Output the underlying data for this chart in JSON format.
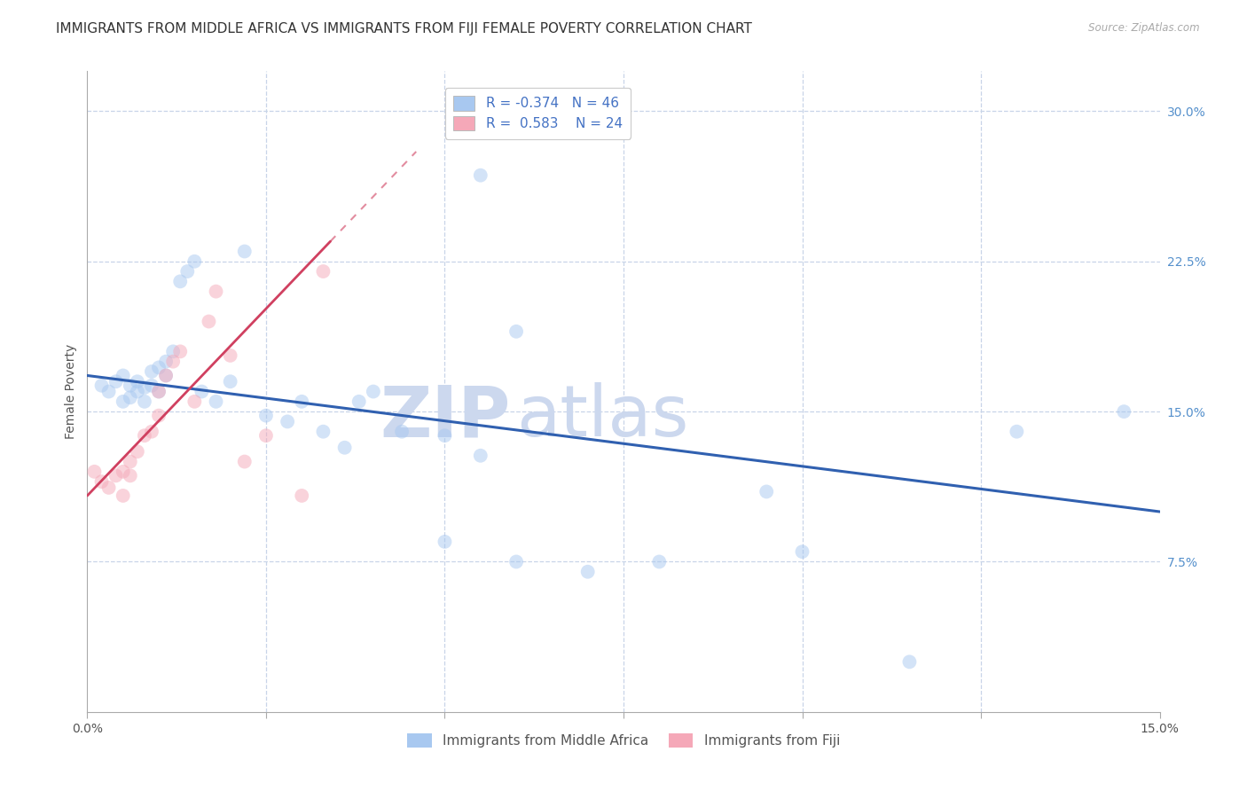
{
  "title": "IMMIGRANTS FROM MIDDLE AFRICA VS IMMIGRANTS FROM FIJI FEMALE POVERTY CORRELATION CHART",
  "source": "Source: ZipAtlas.com",
  "ylabel": "Female Poverty",
  "x_min": 0.0,
  "x_max": 0.15,
  "y_min": 0.0,
  "y_max": 0.32,
  "x_ticks": [
    0.0,
    0.025,
    0.05,
    0.075,
    0.1,
    0.125,
    0.15
  ],
  "y_ticks_right": [
    0.075,
    0.15,
    0.225,
    0.3
  ],
  "y_tick_labels_right": [
    "7.5%",
    "15.0%",
    "22.5%",
    "30.0%"
  ],
  "legend_R_blue": "-0.374",
  "legend_N_blue": "46",
  "legend_R_pink": "0.583",
  "legend_N_pink": "24",
  "legend_label_blue": "Immigrants from Middle Africa",
  "legend_label_pink": "Immigrants from Fiji",
  "blue_color": "#a8c8f0",
  "pink_color": "#f5a8b8",
  "trend_blue_color": "#3060b0",
  "trend_pink_color": "#d04060",
  "blue_scatter_x": [
    0.002,
    0.003,
    0.004,
    0.005,
    0.005,
    0.006,
    0.006,
    0.007,
    0.007,
    0.008,
    0.008,
    0.009,
    0.009,
    0.01,
    0.01,
    0.011,
    0.011,
    0.012,
    0.013,
    0.014,
    0.015,
    0.016,
    0.018,
    0.02,
    0.022,
    0.025,
    0.028,
    0.03,
    0.033,
    0.036,
    0.04,
    0.044,
    0.05,
    0.055,
    0.06,
    0.038,
    0.08,
    0.095,
    0.1,
    0.115,
    0.13,
    0.145,
    0.05,
    0.07,
    0.06,
    0.055
  ],
  "blue_scatter_y": [
    0.163,
    0.16,
    0.165,
    0.168,
    0.155,
    0.163,
    0.157,
    0.165,
    0.16,
    0.162,
    0.155,
    0.17,
    0.163,
    0.172,
    0.16,
    0.175,
    0.168,
    0.18,
    0.215,
    0.22,
    0.225,
    0.16,
    0.155,
    0.165,
    0.23,
    0.148,
    0.145,
    0.155,
    0.14,
    0.132,
    0.16,
    0.14,
    0.138,
    0.128,
    0.19,
    0.155,
    0.075,
    0.11,
    0.08,
    0.025,
    0.14,
    0.15,
    0.085,
    0.07,
    0.075,
    0.268
  ],
  "pink_scatter_x": [
    0.001,
    0.002,
    0.003,
    0.004,
    0.005,
    0.005,
    0.006,
    0.006,
    0.007,
    0.008,
    0.009,
    0.01,
    0.01,
    0.011,
    0.012,
    0.013,
    0.015,
    0.017,
    0.018,
    0.02,
    0.022,
    0.025,
    0.03,
    0.033
  ],
  "pink_scatter_y": [
    0.12,
    0.115,
    0.112,
    0.118,
    0.108,
    0.12,
    0.125,
    0.118,
    0.13,
    0.138,
    0.14,
    0.148,
    0.16,
    0.168,
    0.175,
    0.18,
    0.155,
    0.195,
    0.21,
    0.178,
    0.125,
    0.138,
    0.108,
    0.22
  ],
  "blue_trend_x0": 0.0,
  "blue_trend_y0": 0.168,
  "blue_trend_x1": 0.15,
  "blue_trend_y1": 0.1,
  "pink_trend_x0": 0.0,
  "pink_trend_y0": 0.108,
  "pink_trend_x1": 0.034,
  "pink_trend_y1": 0.235,
  "background_color": "#ffffff",
  "grid_color": "#c8d4e8",
  "watermark_zip_color": "#ccd8ee",
  "watermark_atlas_color": "#ccd8ee",
  "title_fontsize": 11,
  "axis_label_fontsize": 10,
  "tick_fontsize": 10,
  "legend_fontsize": 11,
  "scatter_size": 130,
  "scatter_alpha": 0.5
}
